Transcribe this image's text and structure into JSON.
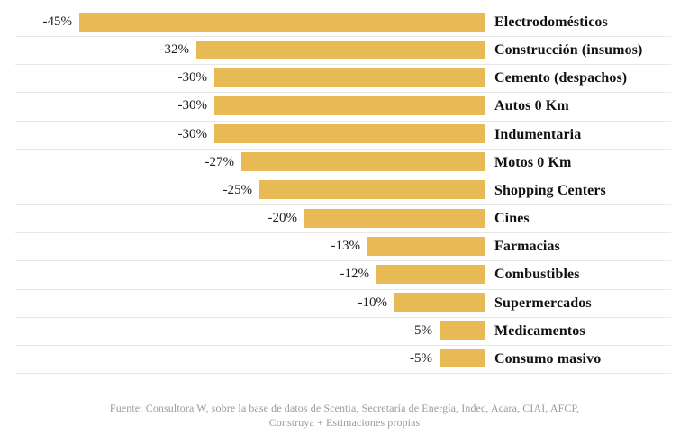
{
  "chart_data": {
    "type": "bar",
    "orientation": "horizontal",
    "title": "",
    "xlabel": "",
    "ylabel": "",
    "xlim": [
      -45,
      0
    ],
    "grid": false,
    "legend": "none",
    "bar_color": "#e8ba55",
    "separator_color": "#e9e8e4",
    "categories": [
      "Electrodomésticos",
      "Construcción (insumos)",
      "Cemento (despachos)",
      "Autos 0 Km",
      "Indumentaria",
      "Motos 0 Km",
      "Shopping Centers",
      "Cines",
      "Farmacias",
      "Combustibles",
      "Supermercados",
      "Medicamentos",
      "Consumo masivo"
    ],
    "values": [
      -45,
      -32,
      -30,
      -30,
      -30,
      -27,
      -25,
      -20,
      -13,
      -12,
      -10,
      -5,
      -5
    ],
    "value_labels": [
      "-45%",
      "-32%",
      "-30%",
      "-30%",
      "-30%",
      "-27%",
      "-25%",
      "-20%",
      "-13%",
      "-12%",
      "-10%",
      "-5%",
      "-5%"
    ]
  },
  "footer": {
    "source_lines": [
      "Fuente: Consultora W, sobre la base de datos de Scentia, Secretaría de Energía, Indec, Acara, CIAI, AFCP,",
      "Construya + Estimaciones propias"
    ]
  }
}
